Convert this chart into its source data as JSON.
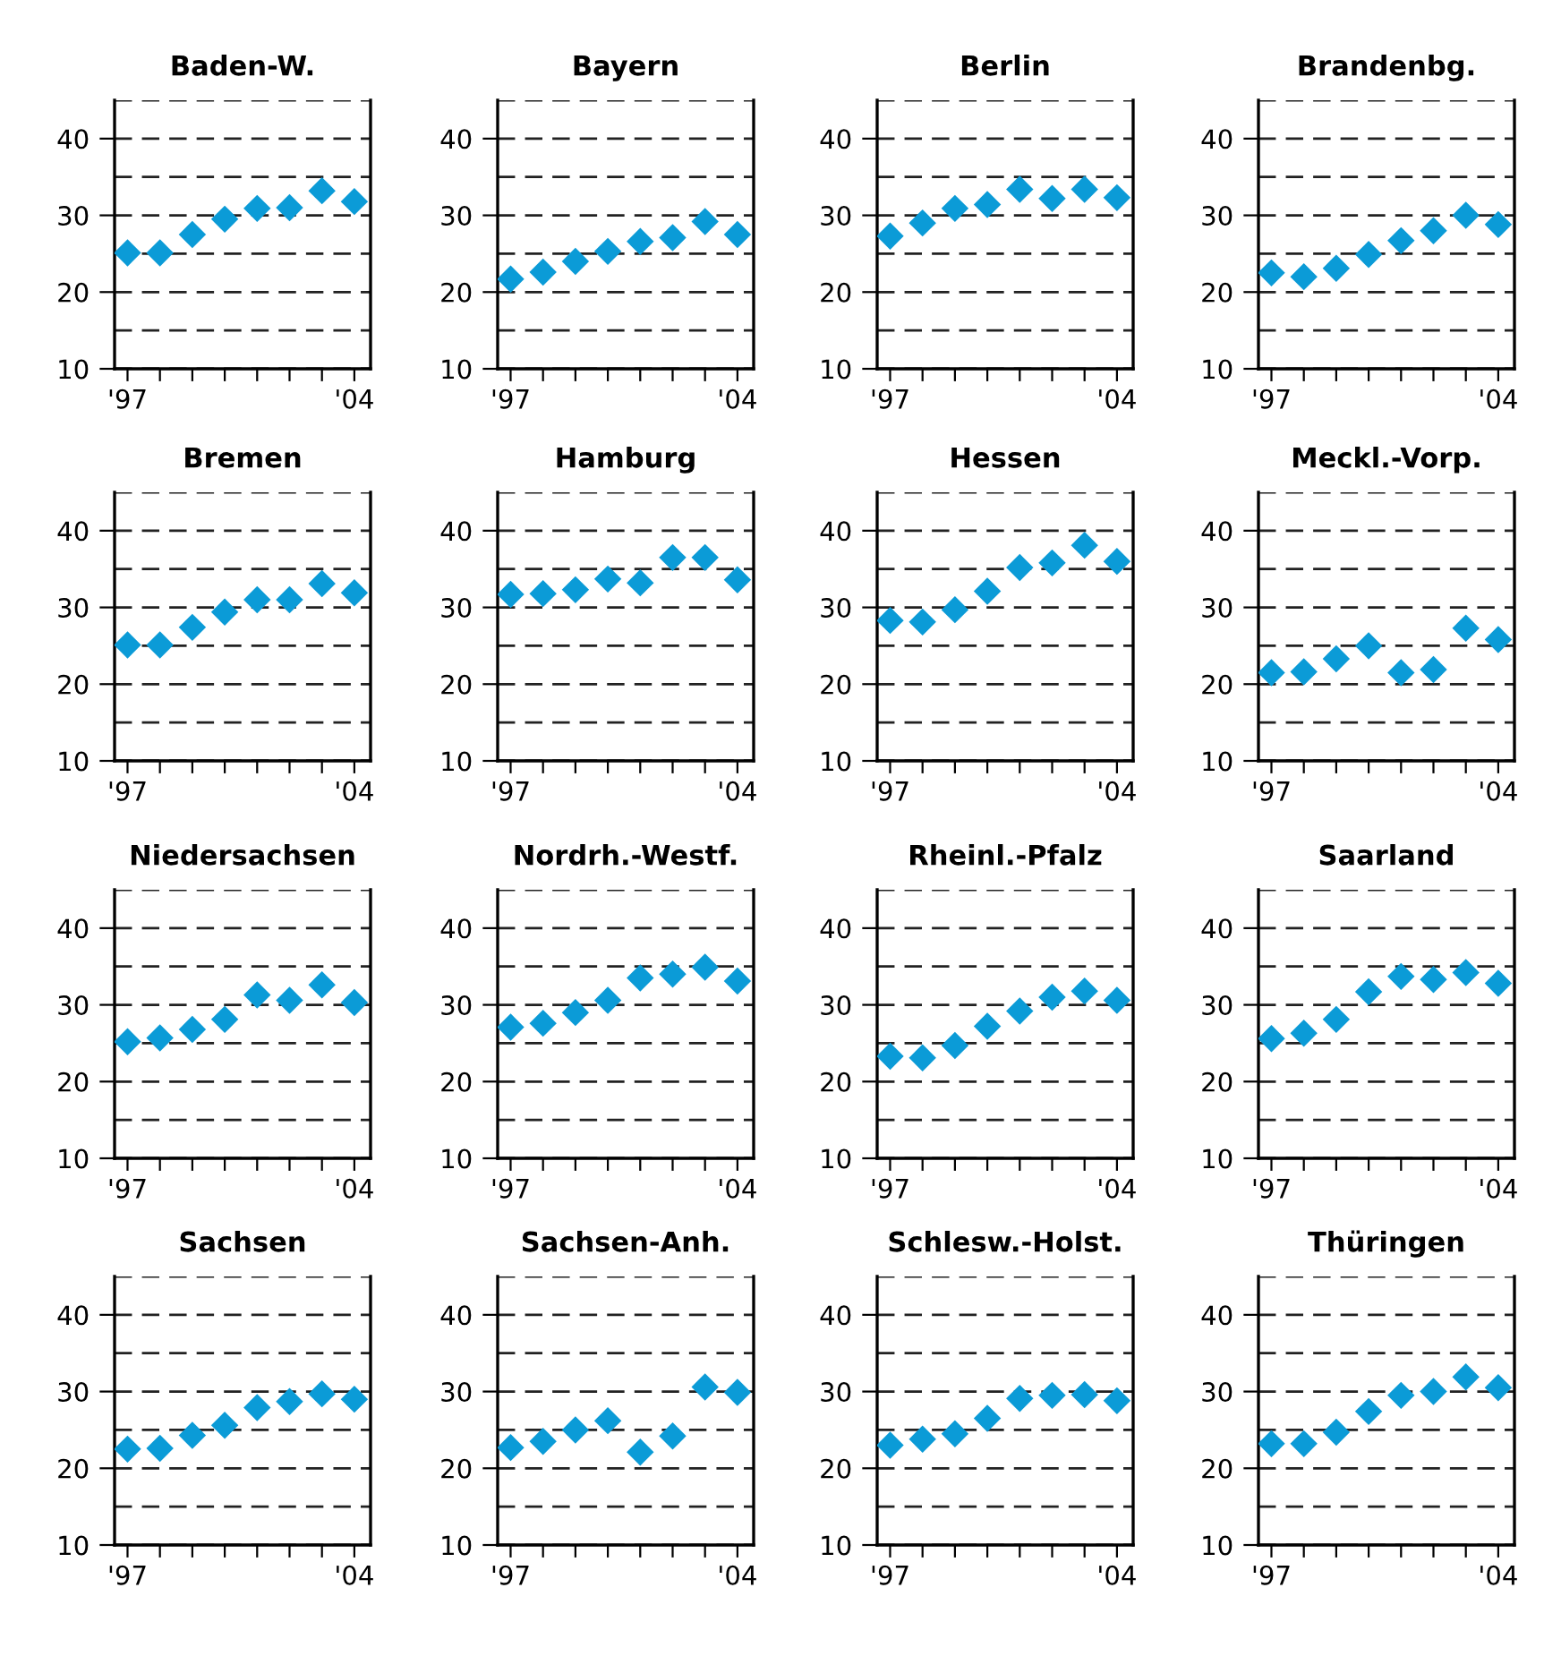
{
  "chart_data": [
    {
      "type": "scatter",
      "title": "Baden-W.",
      "categories": [
        "'97",
        null,
        null,
        null,
        null,
        null,
        null,
        "'04"
      ],
      "series": [
        {
          "color": "#0b9bd7",
          "values": [
            25.1,
            25.1,
            27.5,
            29.5,
            30.9,
            31.0,
            33.2,
            31.8
          ]
        }
      ],
      "ylim": [
        10,
        45
      ],
      "yticks": [
        10,
        {
          "value": 15,
          "label": null
        },
        20,
        {
          "value": 25,
          "label": null
        },
        30,
        {
          "value": 35,
          "label": null
        },
        40,
        {
          "value": 45,
          "label": null
        }
      ],
      "grid": "y",
      "marker": "diamond"
    },
    {
      "type": "scatter",
      "title": "Bayern",
      "categories": [
        "'97",
        null,
        null,
        null,
        null,
        null,
        null,
        "'04"
      ],
      "series": [
        {
          "color": "#0b9bd7",
          "values": [
            21.7,
            22.6,
            24.0,
            25.3,
            26.6,
            27.1,
            29.2,
            27.5
          ]
        }
      ],
      "ylim": [
        10,
        45
      ],
      "yticks": [
        10,
        {
          "value": 15,
          "label": null
        },
        20,
        {
          "value": 25,
          "label": null
        },
        30,
        {
          "value": 35,
          "label": null
        },
        40,
        {
          "value": 45,
          "label": null
        }
      ],
      "grid": "y",
      "marker": "diamond"
    },
    {
      "type": "scatter",
      "title": "Berlin",
      "categories": [
        "'97",
        null,
        null,
        null,
        null,
        null,
        null,
        "'04"
      ],
      "series": [
        {
          "color": "#0b9bd7",
          "values": [
            27.3,
            29.0,
            30.9,
            31.4,
            33.4,
            32.2,
            33.4,
            32.3
          ]
        }
      ],
      "ylim": [
        10,
        45
      ],
      "yticks": [
        10,
        {
          "value": 15,
          "label": null
        },
        20,
        {
          "value": 25,
          "label": null
        },
        30,
        {
          "value": 35,
          "label": null
        },
        40,
        {
          "value": 45,
          "label": null
        }
      ],
      "grid": "y",
      "marker": "diamond"
    },
    {
      "type": "scatter",
      "title": "Brandenbg.",
      "categories": [
        "'97",
        null,
        null,
        null,
        null,
        null,
        null,
        "'04"
      ],
      "series": [
        {
          "color": "#0b9bd7",
          "values": [
            22.5,
            22.0,
            23.1,
            24.9,
            26.7,
            28.0,
            30.0,
            28.8
          ]
        }
      ],
      "ylim": [
        10,
        45
      ],
      "yticks": [
        10,
        {
          "value": 15,
          "label": null
        },
        20,
        {
          "value": 25,
          "label": null
        },
        30,
        {
          "value": 35,
          "label": null
        },
        40,
        {
          "value": 45,
          "label": null
        }
      ],
      "grid": "y",
      "marker": "diamond"
    },
    {
      "type": "scatter",
      "title": "Bremen",
      "categories": [
        "'97",
        null,
        null,
        null,
        null,
        null,
        null,
        "'04"
      ],
      "series": [
        {
          "color": "#0b9bd7",
          "values": [
            25.1,
            25.1,
            27.4,
            29.4,
            31.0,
            31.0,
            33.1,
            31.9
          ]
        }
      ],
      "ylim": [
        10,
        45
      ],
      "yticks": [
        10,
        {
          "value": 15,
          "label": null
        },
        20,
        {
          "value": 25,
          "label": null
        },
        30,
        {
          "value": 35,
          "label": null
        },
        40,
        {
          "value": 45,
          "label": null
        }
      ],
      "grid": "y",
      "marker": "diamond"
    },
    {
      "type": "scatter",
      "title": "Hamburg",
      "categories": [
        "'97",
        null,
        null,
        null,
        null,
        null,
        null,
        "'04"
      ],
      "series": [
        {
          "color": "#0b9bd7",
          "values": [
            31.7,
            31.8,
            32.3,
            33.7,
            33.2,
            36.5,
            36.5,
            33.6
          ]
        }
      ],
      "ylim": [
        10,
        45
      ],
      "yticks": [
        10,
        {
          "value": 15,
          "label": null
        },
        20,
        {
          "value": 25,
          "label": null
        },
        30,
        {
          "value": 35,
          "label": null
        },
        40,
        {
          "value": 45,
          "label": null
        }
      ],
      "grid": "y",
      "marker": "diamond"
    },
    {
      "type": "scatter",
      "title": "Hessen",
      "categories": [
        "'97",
        null,
        null,
        null,
        null,
        null,
        null,
        "'04"
      ],
      "series": [
        {
          "color": "#0b9bd7",
          "values": [
            28.3,
            28.1,
            29.7,
            32.1,
            35.2,
            35.8,
            38.1,
            36.0
          ]
        }
      ],
      "ylim": [
        10,
        45
      ],
      "yticks": [
        10,
        {
          "value": 15,
          "label": null
        },
        20,
        {
          "value": 25,
          "label": null
        },
        30,
        {
          "value": 35,
          "label": null
        },
        40,
        {
          "value": 45,
          "label": null
        }
      ],
      "grid": "y",
      "marker": "diamond"
    },
    {
      "type": "scatter",
      "title": "Meckl.-Vorp.",
      "categories": [
        "'97",
        null,
        null,
        null,
        null,
        null,
        null,
        "'04"
      ],
      "series": [
        {
          "color": "#0b9bd7",
          "values": [
            21.5,
            21.6,
            23.3,
            25.0,
            21.5,
            21.9,
            27.3,
            25.8
          ]
        }
      ],
      "ylim": [
        10,
        45
      ],
      "yticks": [
        10,
        {
          "value": 15,
          "label": null
        },
        20,
        {
          "value": 25,
          "label": null
        },
        30,
        {
          "value": 35,
          "label": null
        },
        40,
        {
          "value": 45,
          "label": null
        }
      ],
      "grid": "y",
      "marker": "diamond"
    },
    {
      "type": "scatter",
      "title": "Niedersachsen",
      "categories": [
        "'97",
        null,
        null,
        null,
        null,
        null,
        null,
        "'04"
      ],
      "series": [
        {
          "color": "#0b9bd7",
          "values": [
            25.2,
            25.7,
            26.8,
            28.1,
            31.3,
            30.6,
            32.6,
            30.3
          ]
        }
      ],
      "ylim": [
        10,
        45
      ],
      "yticks": [
        10,
        {
          "value": 15,
          "label": null
        },
        20,
        {
          "value": 25,
          "label": null
        },
        30,
        {
          "value": 35,
          "label": null
        },
        40,
        {
          "value": 45,
          "label": null
        }
      ],
      "grid": "y",
      "marker": "diamond"
    },
    {
      "type": "scatter",
      "title": "Nordrh.-Westf.",
      "categories": [
        "'97",
        null,
        null,
        null,
        null,
        null,
        null,
        "'04"
      ],
      "series": [
        {
          "color": "#0b9bd7",
          "values": [
            27.1,
            27.6,
            29.0,
            30.6,
            33.5,
            34.0,
            34.9,
            33.1
          ]
        }
      ],
      "ylim": [
        10,
        45
      ],
      "yticks": [
        10,
        {
          "value": 15,
          "label": null
        },
        20,
        {
          "value": 25,
          "label": null
        },
        30,
        {
          "value": 35,
          "label": null
        },
        40,
        {
          "value": 45,
          "label": null
        }
      ],
      "grid": "y",
      "marker": "diamond"
    },
    {
      "type": "scatter",
      "title": "Rheinl.-Pfalz",
      "categories": [
        "'97",
        null,
        null,
        null,
        null,
        null,
        null,
        "'04"
      ],
      "series": [
        {
          "color": "#0b9bd7",
          "values": [
            23.3,
            23.1,
            24.7,
            27.2,
            29.2,
            31.0,
            31.8,
            30.6
          ]
        }
      ],
      "ylim": [
        10,
        45
      ],
      "yticks": [
        10,
        {
          "value": 15,
          "label": null
        },
        20,
        {
          "value": 25,
          "label": null
        },
        30,
        {
          "value": 35,
          "label": null
        },
        40,
        {
          "value": 45,
          "label": null
        }
      ],
      "grid": "y",
      "marker": "diamond"
    },
    {
      "type": "scatter",
      "title": "Saarland",
      "categories": [
        "'97",
        null,
        null,
        null,
        null,
        null,
        null,
        "'04"
      ],
      "series": [
        {
          "color": "#0b9bd7",
          "values": [
            25.6,
            26.3,
            28.1,
            31.7,
            33.7,
            33.3,
            34.2,
            32.8
          ]
        }
      ],
      "ylim": [
        10,
        45
      ],
      "yticks": [
        10,
        {
          "value": 15,
          "label": null
        },
        20,
        {
          "value": 25,
          "label": null
        },
        30,
        {
          "value": 35,
          "label": null
        },
        40,
        {
          "value": 45,
          "label": null
        }
      ],
      "grid": "y",
      "marker": "diamond"
    },
    {
      "type": "scatter",
      "title": "Sachsen",
      "categories": [
        "'97",
        null,
        null,
        null,
        null,
        null,
        null,
        "'04"
      ],
      "series": [
        {
          "color": "#0b9bd7",
          "values": [
            22.5,
            22.6,
            24.3,
            25.6,
            27.9,
            28.7,
            29.7,
            29.0
          ]
        }
      ],
      "ylim": [
        10,
        45
      ],
      "yticks": [
        10,
        {
          "value": 15,
          "label": null
        },
        20,
        {
          "value": 25,
          "label": null
        },
        30,
        {
          "value": 35,
          "label": null
        },
        40,
        {
          "value": 45,
          "label": null
        }
      ],
      "grid": "y",
      "marker": "diamond"
    },
    {
      "type": "scatter",
      "title": "Sachsen-Anh.",
      "categories": [
        "'97",
        null,
        null,
        null,
        null,
        null,
        null,
        "'04"
      ],
      "series": [
        {
          "color": "#0b9bd7",
          "values": [
            22.7,
            23.5,
            25.0,
            26.2,
            22.1,
            24.2,
            30.6,
            29.9
          ]
        }
      ],
      "ylim": [
        10,
        45
      ],
      "yticks": [
        10,
        {
          "value": 15,
          "label": null
        },
        20,
        {
          "value": 25,
          "label": null
        },
        30,
        {
          "value": 35,
          "label": null
        },
        40,
        {
          "value": 45,
          "label": null
        }
      ],
      "grid": "y",
      "marker": "diamond"
    },
    {
      "type": "scatter",
      "title": "Schlesw.-Holst.",
      "categories": [
        "'97",
        null,
        null,
        null,
        null,
        null,
        null,
        "'04"
      ],
      "series": [
        {
          "color": "#0b9bd7",
          "values": [
            23.0,
            23.8,
            24.5,
            26.5,
            29.1,
            29.5,
            29.6,
            28.8
          ]
        }
      ],
      "ylim": [
        10,
        45
      ],
      "yticks": [
        10,
        {
          "value": 15,
          "label": null
        },
        20,
        {
          "value": 25,
          "label": null
        },
        30,
        {
          "value": 35,
          "label": null
        },
        40,
        {
          "value": 45,
          "label": null
        }
      ],
      "grid": "y",
      "marker": "diamond"
    },
    {
      "type": "scatter",
      "title": "Thüringen",
      "categories": [
        "'97",
        null,
        null,
        null,
        null,
        null,
        null,
        "'04"
      ],
      "series": [
        {
          "color": "#0b9bd7",
          "values": [
            23.2,
            23.2,
            24.7,
            27.4,
            29.5,
            30.0,
            31.9,
            30.5
          ]
        }
      ],
      "ylim": [
        10,
        45
      ],
      "yticks": [
        10,
        {
          "value": 15,
          "label": null
        },
        20,
        {
          "value": 25,
          "label": null
        },
        30,
        {
          "value": 35,
          "label": null
        },
        40,
        {
          "value": 45,
          "label": null
        }
      ],
      "grid": "y",
      "marker": "diamond"
    }
  ]
}
